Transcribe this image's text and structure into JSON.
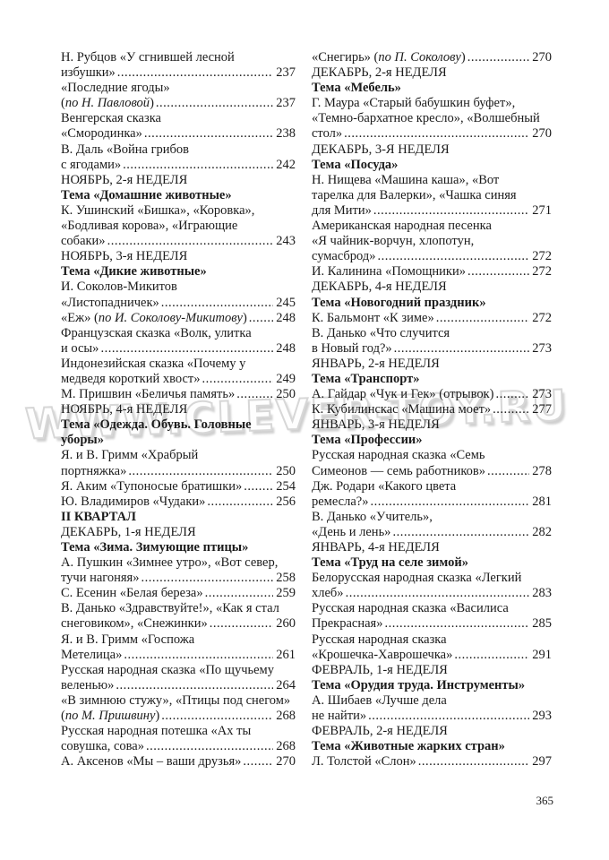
{
  "watermark": {
    "text": "WWW.CLEVER-TOY.RU",
    "outline_color": "#d7d7d7"
  },
  "page_number": "365",
  "columns": [
    {
      "lines": [
        {
          "t": "Н. Рубцов «У сгнившей лесной"
        },
        {
          "t": "избушки»",
          "p": "237"
        },
        {
          "t": "«Последние ягоды»"
        },
        {
          "r": [
            {
              "t": "("
            },
            {
              "t": "по Н. Павловой",
              "i": true
            },
            {
              "t": ")"
            }
          ],
          "p": "237"
        },
        {
          "t": "Венгерская сказка"
        },
        {
          "t": "«Смородинка»",
          "p": "238"
        },
        {
          "t": "В. Даль «Война грибов"
        },
        {
          "t": "с ягодами»",
          "p": "242"
        },
        {
          "t": "НОЯБРЬ, 2-я НЕДЕЛЯ"
        },
        {
          "t": "Тема «Домашние животные»",
          "b": true
        },
        {
          "t": "К. Ушинский «Бишка», «Коровка»,"
        },
        {
          "t": "«Бодливая корова», «Играющие"
        },
        {
          "t": "собаки»",
          "p": "243"
        },
        {
          "t": "НОЯБРЬ, 3-я НЕДЕЛЯ"
        },
        {
          "t": "Тема «Дикие животные»",
          "b": true
        },
        {
          "t": "И. Соколов-Микитов"
        },
        {
          "t": "«Листопадничек»",
          "p": "245"
        },
        {
          "r": [
            {
              "t": "«Еж» ("
            },
            {
              "t": "по И. Соколову-Микитову",
              "i": true
            },
            {
              "t": ")"
            }
          ],
          "p": "248"
        },
        {
          "t": "Французская сказка «Волк, улитка"
        },
        {
          "t": "и осы»",
          "p": "248"
        },
        {
          "t": "Индонезийская сказка «Почему у"
        },
        {
          "t": "медведя короткий хвост»",
          "p": "249"
        },
        {
          "t": "М. Пришвин «Беличья память»",
          "p": "250"
        },
        {
          "t": "НОЯБРЬ, 4-я НЕДЕЛЯ"
        },
        {
          "t": "Тема «Одежда. Обувь. Головные",
          "b": true
        },
        {
          "t": "уборы»",
          "b": true
        },
        {
          "t": "Я. и В. Гримм «Храбрый"
        },
        {
          "t": "портняжка»",
          "p": "250"
        },
        {
          "t": "Я. Аким «Тупоносые братишки»",
          "p": "254"
        },
        {
          "t": "Ю. Владимиров «Чудаки»",
          "p": "256"
        },
        {
          "t": "II КВАРТАЛ",
          "b": true
        },
        {
          "t": "ДЕКАБРЬ, 1-я НЕДЕЛЯ"
        },
        {
          "t": "Тема «Зима. Зимующие птицы»",
          "b": true
        },
        {
          "t": "А. Пушкин «Зимнее утро», «Вот север,"
        },
        {
          "t": "тучи нагоняя»",
          "p": "258"
        },
        {
          "t": "С. Есенин «Белая береза»",
          "p": "259"
        },
        {
          "t": "В. Данько «Здравствуйте!», «Как я стал"
        },
        {
          "t": "снеговиком», «Снежинки»",
          "p": "260"
        },
        {
          "t": "Я. и В. Гримм «Госпожа"
        },
        {
          "t": "Метелица»",
          "p": "261"
        },
        {
          "t": "Русская народная сказка «По щучьему"
        },
        {
          "t": "веленью»",
          "p": "264"
        },
        {
          "t": "«В зимнюю стужу», «Птицы под снегом»"
        },
        {
          "r": [
            {
              "t": "("
            },
            {
              "t": "по М. Пришвину",
              "i": true
            },
            {
              "t": ")"
            }
          ],
          "p": "268"
        },
        {
          "t": "Русская народная потешка «Ах ты"
        },
        {
          "t": "совушка, сова»",
          "p": "268"
        },
        {
          "t": "А. Аксенов «Мы – ваши друзья»",
          "p": "270"
        }
      ]
    },
    {
      "lines": [
        {
          "r": [
            {
              "t": "«Снегирь» ("
            },
            {
              "t": "по П. Соколову",
              "i": true
            },
            {
              "t": ")"
            }
          ],
          "p": "270"
        },
        {
          "t": "ДЕКАБРЬ, 2-я НЕДЕЛЯ"
        },
        {
          "t": "Тема «Мебель»",
          "b": true
        },
        {
          "t": "Г. Маура «Старый бабушкин буфет»,"
        },
        {
          "t": "«Темно-бархатное кресло», «Волшебный"
        },
        {
          "t": "стол»",
          "p": "270"
        },
        {
          "t": "ДЕКАБРЬ, 3-Я НЕДЕЛЯ"
        },
        {
          "t": "Тема «Посуда»",
          "b": true
        },
        {
          "t": "Н. Нищева «Машина каша», «Вот"
        },
        {
          "t": "тарелка для Валерки», «Чашка синяя"
        },
        {
          "t": "для Мити»",
          "p": "271"
        },
        {
          "t": "Американская народная песенка"
        },
        {
          "t": "«Я чайник-ворчун, хлопотун,"
        },
        {
          "t": "сумасброд»",
          "p": "272"
        },
        {
          "t": "И. Калинина «Помощники»",
          "p": "272"
        },
        {
          "t": "ДЕКАБРЬ, 4-я НЕДЕЛЯ"
        },
        {
          "t": "Тема «Новогодний праздник»",
          "b": true
        },
        {
          "t": "К. Бальмонт «К зиме»",
          "p": "272"
        },
        {
          "t": "В. Данько «Что случится"
        },
        {
          "t": "в Новый год?»",
          "p": "273"
        },
        {
          "t": "ЯНВАРЬ, 2-я НЕДЕЛЯ"
        },
        {
          "t": "Тема «Транспорт»",
          "b": true
        },
        {
          "t": "А. Гайдар «Чук и Гек» (отрывок)",
          "p": "273"
        },
        {
          "t": "К. Кубилинскас «Машина моет»",
          "p": "277"
        },
        {
          "t": "ЯНВАРЬ, 3-я НЕДЕЛЯ"
        },
        {
          "t": "Тема «Профессии»",
          "b": true
        },
        {
          "t": "Русская народная сказка «Семь"
        },
        {
          "t": "Симеонов — семь работников»",
          "p": "278"
        },
        {
          "t": "Дж. Родари «Какого цвета"
        },
        {
          "t": "ремесла?»",
          "p": "281"
        },
        {
          "t": "В. Данько «Учитель»,"
        },
        {
          "t": "«День и лень»",
          "p": "282"
        },
        {
          "t": "ЯНВАРЬ, 4-я НЕДЕЛЯ"
        },
        {
          "t": "Тема «Труд на селе зимой»",
          "b": true
        },
        {
          "t": "Белорусская народная сказка «Легкий"
        },
        {
          "t": "хлеб»",
          "p": "283"
        },
        {
          "t": "Русская народная сказка «Василиса"
        },
        {
          "t": "Прекрасная»",
          "p": "285"
        },
        {
          "t": "Русская народная сказка"
        },
        {
          "t": "«Крошечка-Хаврошечка»",
          "p": "291"
        },
        {
          "t": "ФЕВРАЛЬ, 1-я НЕДЕЛЯ"
        },
        {
          "t": "Тема «Орудия труда. Инструменты»",
          "b": true
        },
        {
          "t": "А. Шибаев «Лучше дела"
        },
        {
          "t": "не найти»",
          "p": "293"
        },
        {
          "t": "ФЕВРАЛЬ, 2-я НЕДЕЛЯ"
        },
        {
          "t": "Тема «Животные жарких стран»",
          "b": true
        },
        {
          "t": "Л. Толстой «Слон»",
          "p": "297"
        }
      ]
    }
  ]
}
